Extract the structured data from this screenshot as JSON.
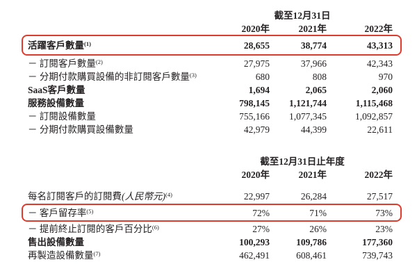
{
  "colors": {
    "annotation_red": "#df3b2c",
    "text": "#262223",
    "background": "#ffffff"
  },
  "table1": {
    "period_header": "截至12月31日",
    "years": [
      "2020年",
      "2021年",
      "2022年"
    ],
    "rows": [
      {
        "label": "活躍客戶數量",
        "footnote": "(1)",
        "values": [
          "28,655",
          "38,774",
          "43,313"
        ],
        "bold": true,
        "highlighted": true
      },
      {
        "label": "－ 訂閱客戶數量",
        "footnote": "(2)",
        "values": [
          "27,975",
          "37,966",
          "42,343"
        ],
        "bold": false,
        "highlighted": false
      },
      {
        "label": "－ 分期付款購買設備的非訂閱客戶數量",
        "footnote": "(3)",
        "values": [
          "680",
          "808",
          "970"
        ],
        "bold": false,
        "highlighted": false
      },
      {
        "label": "SaaS客戶數量",
        "footnote": "",
        "values": [
          "1,694",
          "2,065",
          "2,060"
        ],
        "bold": true,
        "highlighted": false
      },
      {
        "label": "服務設備數量",
        "footnote": "",
        "values": [
          "798,145",
          "1,121,744",
          "1,115,468"
        ],
        "bold": true,
        "highlighted": false
      },
      {
        "label": "－ 訂閱設備數量",
        "footnote": "",
        "values": [
          "755,166",
          "1,077,345",
          "1,092,857"
        ],
        "bold": false,
        "highlighted": false
      },
      {
        "label": "－ 分期付款購買設備數量",
        "footnote": "",
        "values": [
          "42,979",
          "44,399",
          "22,611"
        ],
        "bold": false,
        "highlighted": false
      }
    ]
  },
  "table2": {
    "period_header": "截至12月31日止年度",
    "years": [
      "2020年",
      "2021年",
      "2022年"
    ],
    "rows": [
      {
        "label": "每名訂閱客戶的訂閱費",
        "label_italic": "(人民幣元)",
        "footnote": "(4)",
        "values": [
          "22,997",
          "26,284",
          "27,517"
        ],
        "bold": false,
        "highlighted": false
      },
      {
        "label": "－ 客戶留存率",
        "footnote": "(5)",
        "values": [
          "72%",
          "71%",
          "73%"
        ],
        "bold": false,
        "highlighted": true
      },
      {
        "label": "－ 提前終止訂閱的客戶百分比",
        "footnote": "(6)",
        "values": [
          "27%",
          "26%",
          "23%"
        ],
        "bold": false,
        "highlighted": false
      },
      {
        "label": "售出設備數量",
        "footnote": "",
        "values": [
          "100,293",
          "109,786",
          "177,360"
        ],
        "bold": true,
        "highlighted": false
      },
      {
        "label": "再製造設備數量",
        "footnote": "(7)",
        "values": [
          "462,491",
          "608,461",
          "739,743"
        ],
        "bold": false,
        "highlighted": false
      }
    ]
  }
}
